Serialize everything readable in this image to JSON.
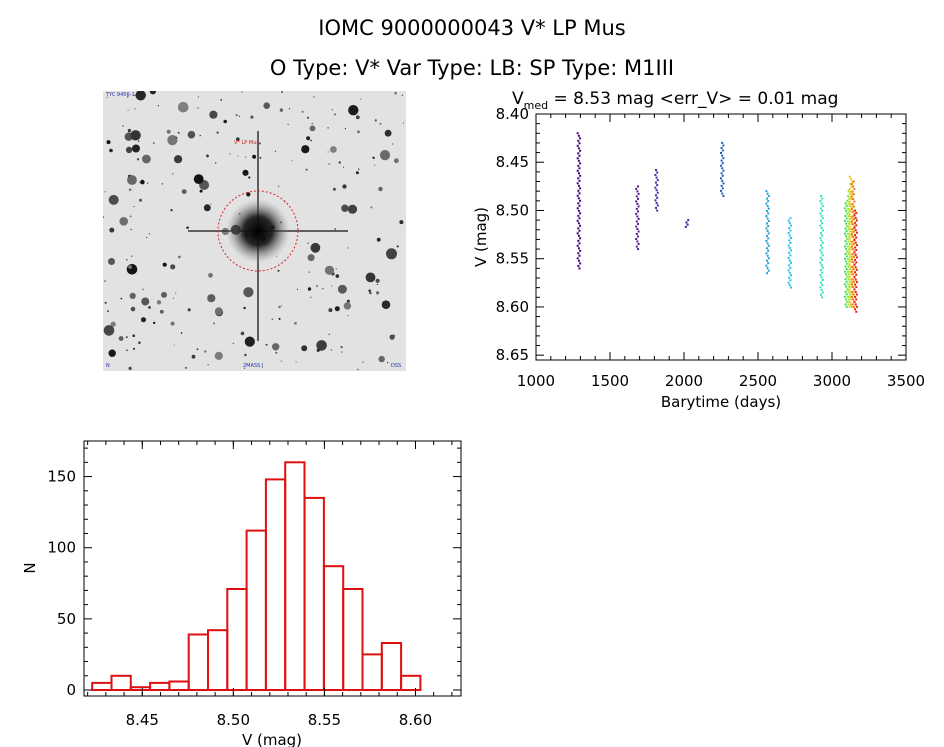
{
  "header": {
    "title": "IOMC 9000000043    V* LP Mus",
    "subtitle": "O Type: V*  Var Type: LB:  SP Type: M1III"
  },
  "sky_image": {
    "label_top_left": "TYC 9456-1",
    "label_star": "V* LP Mus",
    "label_bottom_left": "N",
    "label_bottom_center": "2MASS J",
    "label_bottom_right": "DSS"
  },
  "chart_data": [
    {
      "type": "scatter",
      "name": "light-curve",
      "title_prefix": "V",
      "title_sub": "med",
      "title_rest": " = 8.53 mag <err_V> = 0.01 mag",
      "xlabel": "Barytime (days)",
      "ylabel": "V (mag)",
      "xlim": [
        1000,
        3500
      ],
      "ylim": [
        8.4,
        8.655
      ],
      "y_inverted": true,
      "xticks": [
        1000,
        1500,
        2000,
        2500,
        3000,
        3500
      ],
      "yticks": [
        8.4,
        8.45,
        8.5,
        8.55,
        8.6,
        8.65
      ],
      "series": [
        {
          "name": "s1",
          "color": "#4b0082",
          "x": 1290,
          "ymin": 8.42,
          "ymax": 8.56
        },
        {
          "name": "s2",
          "color": "#5b1a92",
          "x": 1685,
          "ymin": 8.475,
          "ymax": 8.54
        },
        {
          "name": "s3",
          "color": "#4a2aa0",
          "x": 1815,
          "ymin": 8.458,
          "ymax": 8.5
        },
        {
          "name": "s4",
          "color": "#1f2fa8",
          "x": 2020,
          "ymin": 8.51,
          "ymax": 8.517
        },
        {
          "name": "s5",
          "color": "#1e5fb8",
          "x": 2258,
          "ymin": 8.43,
          "ymax": 8.485
        },
        {
          "name": "s6",
          "color": "#2a9fd6",
          "x": 2565,
          "ymin": 8.48,
          "ymax": 8.565
        },
        {
          "name": "s7",
          "color": "#2ec4d8",
          "x": 2715,
          "ymin": 8.508,
          "ymax": 8.58
        },
        {
          "name": "s8",
          "color": "#33e0c0",
          "x": 2930,
          "ymin": 8.485,
          "ymax": 8.59
        },
        {
          "name": "s9",
          "color": "#3fdf5a",
          "x": 3095,
          "ymin": 8.49,
          "ymax": 8.6
        },
        {
          "name": "s10",
          "color": "#9be830",
          "x": 3112,
          "ymin": 8.48,
          "ymax": 8.6
        },
        {
          "name": "s11",
          "color": "#f2c21a",
          "x": 3128,
          "ymin": 8.465,
          "ymax": 8.6
        },
        {
          "name": "s12",
          "color": "#ee7a14",
          "x": 3143,
          "ymin": 8.47,
          "ymax": 8.6
        },
        {
          "name": "s13",
          "color": "#e02010",
          "x": 3160,
          "ymin": 8.5,
          "ymax": 8.605
        }
      ]
    },
    {
      "type": "bar",
      "name": "histogram",
      "xlabel": "V (mag)",
      "ylabel": "N",
      "xlim": [
        8.418,
        8.625
      ],
      "ylim": [
        0,
        175
      ],
      "xticks": [
        8.45,
        8.5,
        8.55,
        8.6
      ],
      "yticks": [
        0,
        50,
        100,
        150
      ],
      "bin_width": 0.0106,
      "bin_starts": [
        8.4225,
        8.4331,
        8.4437,
        8.4543,
        8.4649,
        8.4755,
        8.4861,
        8.4967,
        8.5073,
        8.5179,
        8.5285,
        8.5391,
        8.5497,
        8.5603,
        8.5709,
        8.5815,
        8.5921
      ],
      "values": [
        5,
        10,
        2,
        5,
        6,
        39,
        42,
        71,
        112,
        148,
        160,
        135,
        87,
        71,
        25,
        33,
        10
      ],
      "color": "#dd1111"
    }
  ]
}
